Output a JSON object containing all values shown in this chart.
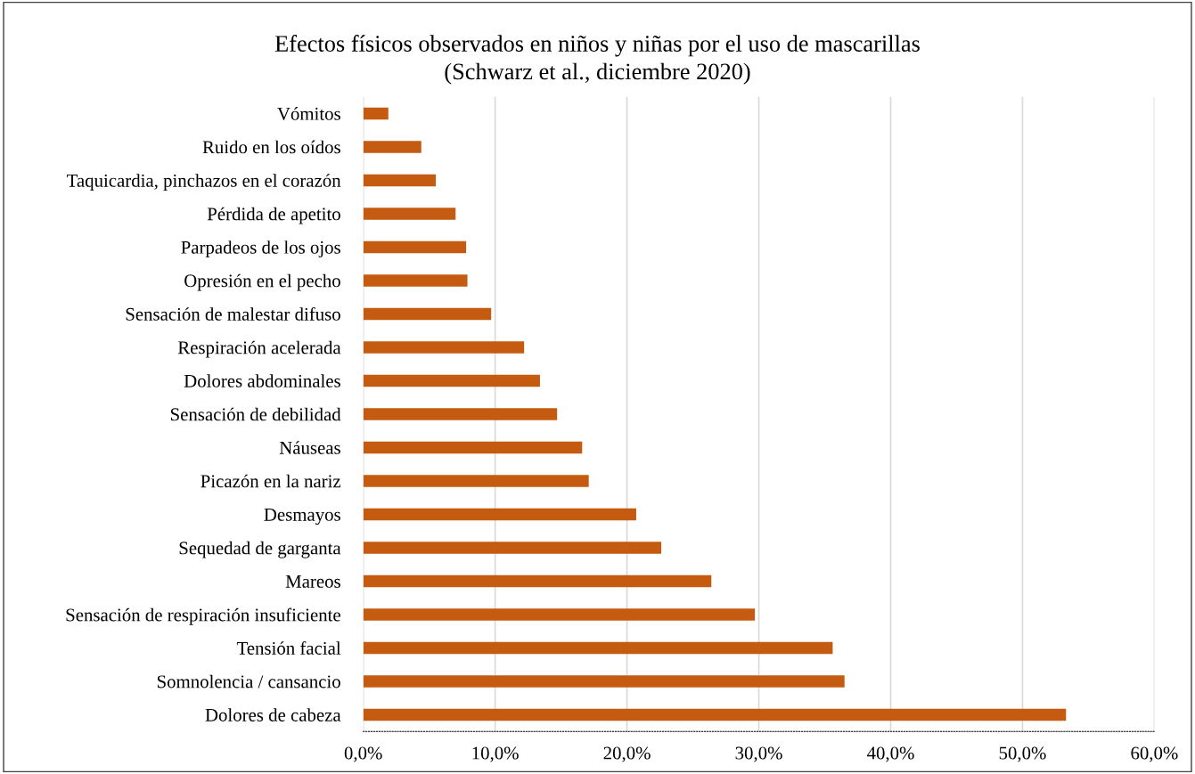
{
  "chart_data": {
    "type": "bar",
    "orientation": "horizontal",
    "title": "Efectos físicos observados en niños y niñas por el uso de mascarillas\n(Schwarz et al., diciembre 2020)",
    "categories": [
      "Vómitos",
      "Ruido en los oídos",
      "Taquicardia, pinchazos en el corazón",
      "Pérdida de apetito",
      "Parpadeos de los ojos",
      "Opresión en el pecho",
      "Sensación de malestar difuso",
      "Respiración acelerada",
      "Dolores abdominales",
      "Sensación de debilidad",
      "Náuseas",
      "Picazón en la nariz",
      "Desmayos",
      "Sequedad de garganta",
      "Mareos",
      "Sensación de respiración insuficiente",
      "Tensión facial",
      "Somnolencia / cansancio",
      "Dolores de cabeza"
    ],
    "values": [
      1.9,
      4.4,
      5.5,
      7.0,
      7.8,
      7.9,
      9.7,
      12.2,
      13.4,
      14.7,
      16.6,
      17.1,
      20.7,
      22.6,
      26.4,
      29.7,
      35.6,
      36.5,
      53.3
    ],
    "color": "#c55a11",
    "xlim": [
      0,
      60
    ],
    "xticks": [
      {
        "value": 0,
        "label": "0,0%"
      },
      {
        "value": 10,
        "label": "10,0%"
      },
      {
        "value": 20,
        "label": "20,0%"
      },
      {
        "value": 30,
        "label": "30,0%"
      },
      {
        "value": 40,
        "label": "40,0%"
      },
      {
        "value": 50,
        "label": "50,0%"
      },
      {
        "value": 60,
        "label": "60,0%"
      }
    ],
    "grid": "x"
  }
}
